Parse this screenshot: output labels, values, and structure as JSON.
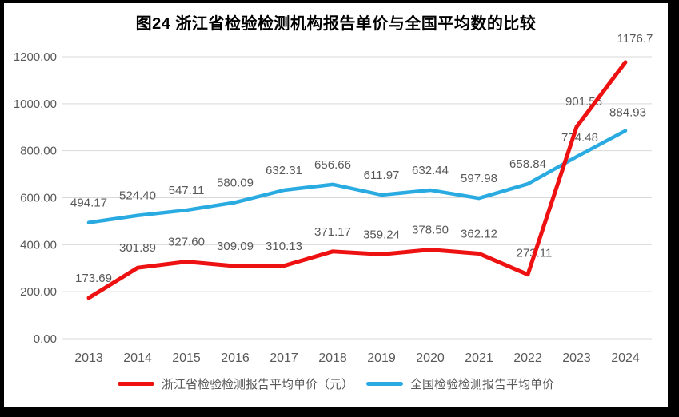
{
  "chart_data": {
    "type": "line",
    "title": "图24  浙江省检验检测机构报告单价与全国平均数的比较",
    "categories": [
      "2013",
      "2014",
      "2015",
      "2016",
      "2017",
      "2018",
      "2019",
      "2020",
      "2021",
      "2022",
      "2023",
      "2024"
    ],
    "series": [
      {
        "name": "浙江省检验检测报告平均单价（元）",
        "color": "#ee1111",
        "values": [
          173.69,
          301.89,
          327.6,
          309.09,
          310.13,
          371.17,
          359.24,
          378.5,
          362.12,
          273.11,
          901.56,
          1176.7
        ],
        "labels": [
          "173.69",
          "301.89",
          "327.60",
          "309.09",
          "310.13",
          "371.17",
          "359.24",
          "378.50",
          "362.12",
          "273.11",
          "901.56",
          "1176.7"
        ]
      },
      {
        "name": "全国检验检测报告平均单价",
        "color": "#29abe2",
        "values": [
          494.17,
          524.4,
          547.11,
          580.09,
          632.31,
          656.66,
          611.97,
          632.44,
          597.98,
          658.84,
          774.48,
          884.93
        ],
        "labels": [
          "494.17",
          "524.40",
          "547.11",
          "580.09",
          "632.31",
          "656.66",
          "611.97",
          "632.44",
          "597.98",
          "658.84",
          "774.48",
          "884.93"
        ]
      }
    ],
    "xlabel": "",
    "ylabel": "",
    "ylim": [
      0,
      1200
    ],
    "ytick_step": 200,
    "ytick_labels": [
      "0.00",
      "200.00",
      "400.00",
      "600.00",
      "800.00",
      "1000.00",
      "1200.00"
    ],
    "grid": true,
    "legend_position": "bottom",
    "colors": {
      "gridline": "#d9d9d9",
      "axis_text": "#595959",
      "data_label_text": "#595959",
      "title_text": "#000000",
      "frame_border": "#000000"
    }
  }
}
